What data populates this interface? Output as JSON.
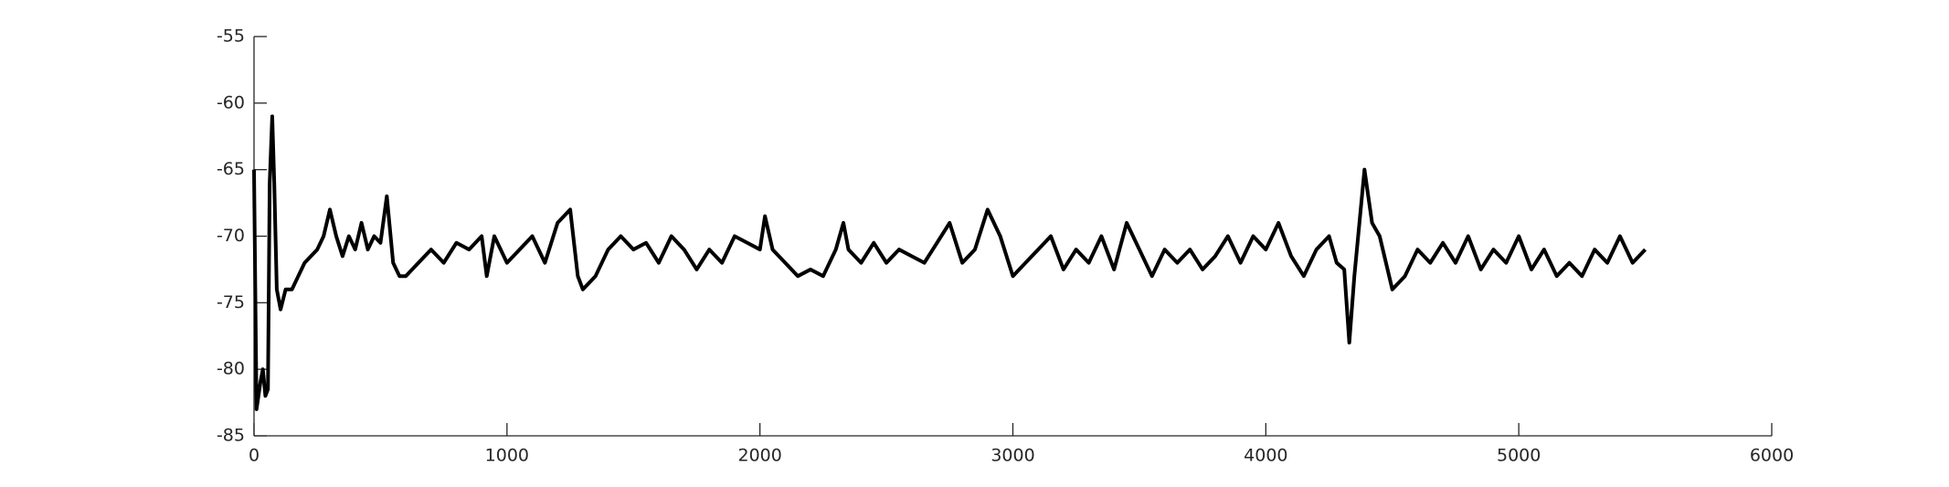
{
  "chart_data": {
    "type": "line",
    "x": [
      0,
      10,
      25,
      35,
      45,
      55,
      62,
      72,
      80,
      90,
      105,
      125,
      150,
      175,
      200,
      225,
      250,
      275,
      300,
      325,
      350,
      375,
      400,
      425,
      450,
      475,
      500,
      525,
      550,
      575,
      600,
      650,
      700,
      750,
      800,
      850,
      900,
      920,
      950,
      1000,
      1050,
      1100,
      1150,
      1200,
      1250,
      1280,
      1300,
      1350,
      1400,
      1450,
      1500,
      1550,
      1600,
      1650,
      1700,
      1750,
      1800,
      1850,
      1900,
      1950,
      2000,
      2020,
      2050,
      2100,
      2150,
      2200,
      2250,
      2300,
      2330,
      2350,
      2400,
      2450,
      2500,
      2550,
      2600,
      2650,
      2700,
      2750,
      2800,
      2850,
      2900,
      2950,
      3000,
      3050,
      3100,
      3150,
      3200,
      3250,
      3300,
      3350,
      3400,
      3450,
      3500,
      3550,
      3600,
      3650,
      3700,
      3750,
      3800,
      3850,
      3900,
      3950,
      4000,
      4050,
      4100,
      4150,
      4200,
      4250,
      4280,
      4310,
      4330,
      4350,
      4390,
      4420,
      4450,
      4500,
      4550,
      4600,
      4650,
      4700,
      4750,
      4800,
      4850,
      4900,
      4950,
      5000,
      5050,
      5100,
      5150,
      5200,
      5250,
      5300,
      5350,
      5400,
      5450,
      5500
    ],
    "series": [
      {
        "color": "#000000",
        "values": [
          -65,
          -83,
          -81,
          -80,
          -82,
          -81.5,
          -66,
          -61,
          -66,
          -74,
          -75.5,
          -74,
          -74,
          -73,
          -72,
          -71.5,
          -71,
          -70,
          -68,
          -70,
          -71.5,
          -70,
          -71,
          -69,
          -71,
          -70,
          -70.5,
          -67,
          -72,
          -73,
          -73,
          -72,
          -71,
          -72,
          -70.5,
          -71,
          -70,
          -73,
          -70,
          -72,
          -71,
          -70,
          -72,
          -69,
          -68,
          -73,
          -74,
          -73,
          -71,
          -70,
          -71,
          -70.5,
          -72,
          -70,
          -71,
          -72.5,
          -71,
          -72,
          -70,
          -70.5,
          -71,
          -68.5,
          -71,
          -72,
          -73,
          -72.5,
          -73,
          -71,
          -69,
          -71,
          -72,
          -70.5,
          -72,
          -71,
          -71.5,
          -72,
          -70.5,
          -69,
          -72,
          -71,
          -68,
          -70,
          -73,
          -72,
          -71,
          -70,
          -72.5,
          -71,
          -72,
          -70,
          -72.5,
          -69,
          -71,
          -73,
          -71,
          -72,
          -71,
          -72.5,
          -71.5,
          -70,
          -72,
          -70,
          -71,
          -69,
          -71.5,
          -73,
          -71,
          -70,
          -72,
          -72.5,
          -78,
          -73,
          -65,
          -69,
          -70,
          -74,
          -73,
          -71,
          -72,
          -70.5,
          -72,
          -70,
          -72.5,
          -71,
          -72,
          -70,
          -72.5,
          -71,
          -73,
          -72,
          -73,
          -71,
          -72,
          -70,
          -72,
          -71
        ]
      }
    ],
    "xlim": [
      0,
      6000
    ],
    "xticks": [
      0,
      1000,
      2000,
      3000,
      4000,
      5000,
      6000
    ],
    "ylim": [
      -85,
      -55
    ],
    "yticks": [
      -85,
      -80,
      -75,
      -70,
      -65,
      -60,
      -55
    ]
  }
}
